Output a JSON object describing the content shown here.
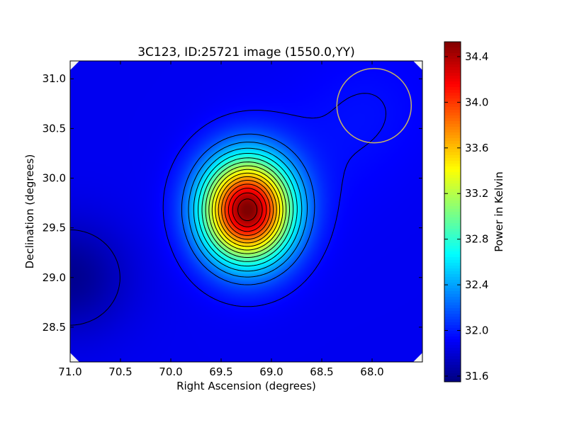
{
  "chart_data": {
    "type": "heatmap",
    "title": "3C123, ID:25721 image (1550.0,YY)",
    "xlabel": "Right Ascension (degrees)",
    "ylabel": "Declination (degrees)",
    "colorbar_label": "Power in Kelvin",
    "x_inverted": true,
    "xlim": [
      71.0,
      67.5
    ],
    "ylim": [
      28.15,
      31.18
    ],
    "x_ticks": [
      71.0,
      70.5,
      70.0,
      69.5,
      69.0,
      68.5,
      68.0
    ],
    "x_tick_labels": [
      "71.0",
      "70.5",
      "70.0",
      "69.5",
      "69.0",
      "68.5",
      "68.0"
    ],
    "y_ticks": [
      28.5,
      29.0,
      29.5,
      30.0,
      30.5,
      31.0
    ],
    "y_tick_labels": [
      "28.5",
      "29.0",
      "29.5",
      "30.0",
      "30.5",
      "31.0"
    ],
    "colorbar_range": [
      31.55,
      34.53
    ],
    "colorbar_ticks": [
      31.6,
      32.0,
      32.4,
      32.8,
      33.2,
      33.6,
      34.0,
      34.4
    ],
    "colorbar_tick_labels": [
      "31.6",
      "32.0",
      "32.4",
      "32.8",
      "33.2",
      "33.6",
      "34.0",
      "34.4"
    ],
    "colormap": "jet",
    "background_level": 31.88,
    "peak": {
      "ra": 69.24,
      "dec": 29.68,
      "value": 34.53
    },
    "minimum": {
      "ra": 71.0,
      "dec": 29.0,
      "value": 31.6
    },
    "beam_circle": {
      "ra": 67.98,
      "dec": 30.73,
      "radius_deg": 0.37,
      "color": "#c8b464"
    },
    "contour_color": "#000000"
  }
}
